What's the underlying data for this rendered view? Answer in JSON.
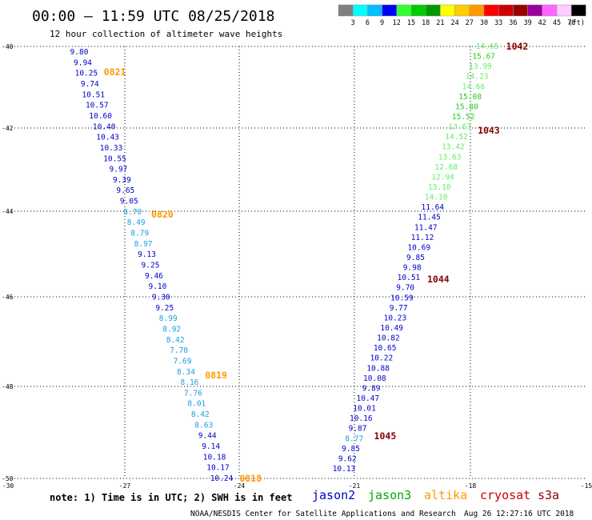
{
  "header": {
    "title": "00:00 – 11:59 UTC 08/25/2018",
    "subtitle": "12 hour collection of altimeter wave heights"
  },
  "colorbar": {
    "labels": [
      "3",
      "6",
      "9",
      "12",
      "15",
      "18",
      "21",
      "24",
      "27",
      "30",
      "33",
      "36",
      "39",
      "42",
      "45",
      "70"
    ],
    "unit": "(ft)",
    "colors": [
      "#808080",
      "#00ffff",
      "#00bfff",
      "#0000ff",
      "#33ff33",
      "#00cc00",
      "#009900",
      "#ffff00",
      "#ffcc00",
      "#ff9900",
      "#ff0000",
      "#cc0000",
      "#990000",
      "#990099",
      "#ff66ff",
      "#ffccff",
      "#000000"
    ]
  },
  "axes": {
    "lat_labels": [
      "-40",
      "-42",
      "-44",
      "-46",
      "-48",
      "-50"
    ],
    "lon_labels": [
      "-30",
      "-27",
      "-24",
      "-21",
      "-18",
      "-15"
    ]
  },
  "track_west": {
    "points": [
      {
        "value": "9.80",
        "color": "#0000cc"
      },
      {
        "value": "9.94",
        "color": "#0000cc"
      },
      {
        "value": "10.25",
        "color": "#0000cc"
      },
      {
        "value": "9.74",
        "color": "#0000cc"
      },
      {
        "value": "10.51",
        "color": "#0000cc"
      },
      {
        "value": "10.57",
        "color": "#0000cc"
      },
      {
        "value": "10.60",
        "color": "#0000cc"
      },
      {
        "value": "10.40",
        "color": "#0000cc"
      },
      {
        "value": "10.43",
        "color": "#0000cc"
      },
      {
        "value": "10.33",
        "color": "#0000cc"
      },
      {
        "value": "10.55",
        "color": "#0000cc"
      },
      {
        "value": "9.97",
        "color": "#0000cc"
      },
      {
        "value": "9.39",
        "color": "#0000cc"
      },
      {
        "value": "9.65",
        "color": "#0000cc"
      },
      {
        "value": "9.05",
        "color": "#0000cc"
      },
      {
        "value": "8.70",
        "color": "#1aa0e0"
      },
      {
        "value": "8.49",
        "color": "#1aa0e0"
      },
      {
        "value": "8.79",
        "color": "#1aa0e0"
      },
      {
        "value": "8.97",
        "color": "#1aa0e0"
      },
      {
        "value": "9.13",
        "color": "#0000cc"
      },
      {
        "value": "9.25",
        "color": "#0000cc"
      },
      {
        "value": "9.46",
        "color": "#0000cc"
      },
      {
        "value": "9.10",
        "color": "#0000cc"
      },
      {
        "value": "9.30",
        "color": "#0000cc"
      },
      {
        "value": "9.25",
        "color": "#0000cc"
      },
      {
        "value": "8.99",
        "color": "#1aa0e0"
      },
      {
        "value": "8.92",
        "color": "#1aa0e0"
      },
      {
        "value": "8.42",
        "color": "#1aa0e0"
      },
      {
        "value": "7.70",
        "color": "#1aa0e0"
      },
      {
        "value": "7.69",
        "color": "#1aa0e0"
      },
      {
        "value": "8.34",
        "color": "#1aa0e0"
      },
      {
        "value": "8.16",
        "color": "#1aa0e0"
      },
      {
        "value": "7.76",
        "color": "#1aa0e0"
      },
      {
        "value": "8.01",
        "color": "#1aa0e0"
      },
      {
        "value": "8.42",
        "color": "#1aa0e0"
      },
      {
        "value": "8.63",
        "color": "#1aa0e0"
      },
      {
        "value": "9.44",
        "color": "#0000cc"
      },
      {
        "value": "9.14",
        "color": "#0000cc"
      },
      {
        "value": "10.18",
        "color": "#0000cc"
      },
      {
        "value": "10.17",
        "color": "#0000cc"
      },
      {
        "value": "10.24",
        "color": "#0000cc"
      }
    ],
    "time_labels": [
      "0821",
      "0820",
      "0819",
      "0818"
    ]
  },
  "track_east": {
    "points": [
      {
        "value": "14.65",
        "color": "#66ee66"
      },
      {
        "value": "15.67",
        "color": "#22cc22"
      },
      {
        "value": "13.99",
        "color": "#66ee66"
      },
      {
        "value": "14.23",
        "color": "#66ee66"
      },
      {
        "value": "14.66",
        "color": "#66ee66"
      },
      {
        "value": "15.08",
        "color": "#22cc22"
      },
      {
        "value": "15.80",
        "color": "#22cc22"
      },
      {
        "value": "15.52",
        "color": "#22cc22"
      },
      {
        "value": "13.67",
        "color": "#66ee66"
      },
      {
        "value": "14.52",
        "color": "#66ee66"
      },
      {
        "value": "13.42",
        "color": "#66ee66"
      },
      {
        "value": "13.63",
        "color": "#66ee66"
      },
      {
        "value": "12.68",
        "color": "#66ee66"
      },
      {
        "value": "12.94",
        "color": "#66ee66"
      },
      {
        "value": "13.10",
        "color": "#66ee66"
      },
      {
        "value": "14.10",
        "color": "#66ee66"
      },
      {
        "value": "11.64",
        "color": "#0000cc"
      },
      {
        "value": "11.45",
        "color": "#0000cc"
      },
      {
        "value": "11.47",
        "color": "#0000cc"
      },
      {
        "value": "11.12",
        "color": "#0000cc"
      },
      {
        "value": "10.69",
        "color": "#0000cc"
      },
      {
        "value": "9.85",
        "color": "#0000cc"
      },
      {
        "value": "9.98",
        "color": "#0000cc"
      },
      {
        "value": "10.51",
        "color": "#0000cc"
      },
      {
        "value": "9.70",
        "color": "#0000cc"
      },
      {
        "value": "10.59",
        "color": "#0000cc"
      },
      {
        "value": "9.77",
        "color": "#0000cc"
      },
      {
        "value": "10.23",
        "color": "#0000cc"
      },
      {
        "value": "10.49",
        "color": "#0000cc"
      },
      {
        "value": "10.82",
        "color": "#0000cc"
      },
      {
        "value": "10.65",
        "color": "#0000cc"
      },
      {
        "value": "10.22",
        "color": "#0000cc"
      },
      {
        "value": "10.88",
        "color": "#0000cc"
      },
      {
        "value": "10.08",
        "color": "#0000cc"
      },
      {
        "value": "9.89",
        "color": "#0000cc"
      },
      {
        "value": "10.47",
        "color": "#0000cc"
      },
      {
        "value": "10.01",
        "color": "#0000cc"
      },
      {
        "value": "10.16",
        "color": "#0000cc"
      },
      {
        "value": "9.87",
        "color": "#0000cc"
      },
      {
        "value": "8.77",
        "color": "#1aa0e0"
      },
      {
        "value": "9.85",
        "color": "#0000cc"
      },
      {
        "value": "9.62",
        "color": "#0000cc"
      },
      {
        "value": "10.13",
        "color": "#0000cc"
      }
    ],
    "time_labels": [
      "1042",
      "1043",
      "1044",
      "1045"
    ]
  },
  "footer": {
    "note": "note: 1) Time is in UTC; 2) SWH is in feet",
    "legend": [
      {
        "name": "jason2",
        "color": "#0000cc"
      },
      {
        "name": "jason3",
        "color": "#00aa00"
      },
      {
        "name": "altika",
        "color": "#ff9900"
      },
      {
        "name": "cryosat",
        "color": "#cc0000"
      },
      {
        "name": "s3a",
        "color": "#880000"
      }
    ],
    "credit": "NOAA/NESDIS Center for Satellite Applications and Research",
    "timestamp": "Aug 26 12:27:16 UTC 2018"
  }
}
